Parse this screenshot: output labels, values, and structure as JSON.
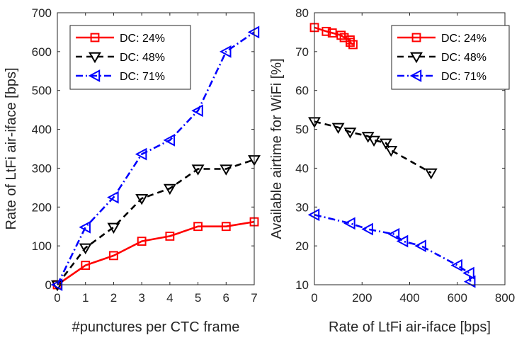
{
  "chart_data": [
    {
      "type": "line",
      "title": "",
      "xlabel": "#punctures per CTC frame",
      "ylabel": "Rate of LtFi air-iface [bps]",
      "xlim": [
        0,
        7
      ],
      "ylim": [
        0,
        700
      ],
      "xticks": [
        "0",
        "1",
        "2",
        "3",
        "4",
        "5",
        "6",
        "7"
      ],
      "yticks": [
        "0",
        "100",
        "200",
        "300",
        "400",
        "500",
        "600",
        "700"
      ],
      "xtick_values": [
        0,
        1,
        2,
        3,
        4,
        5,
        6,
        7
      ],
      "ytick_values": [
        0,
        100,
        200,
        300,
        400,
        500,
        600,
        700
      ],
      "grid": false,
      "legend_position": "top-left",
      "series": [
        {
          "name": "DC: 24%",
          "color": "#ff0000",
          "dash": "solid",
          "marker": "square",
          "x": [
            0,
            1,
            2,
            3,
            4,
            5,
            6,
            7
          ],
          "y": [
            0,
            50,
            75,
            112,
            125,
            150,
            150,
            162
          ]
        },
        {
          "name": "DC: 48%",
          "color": "#000000",
          "dash": "dashed",
          "marker": "triangle-down",
          "x": [
            0,
            1,
            2,
            3,
            4,
            5,
            6,
            7
          ],
          "y": [
            0,
            95,
            148,
            222,
            248,
            298,
            298,
            322
          ]
        },
        {
          "name": "DC: 71%",
          "color": "#0000ff",
          "dash": "dashdot",
          "marker": "triangle-left",
          "x": [
            0,
            1,
            2,
            3,
            4,
            5,
            6,
            7
          ],
          "y": [
            0,
            148,
            225,
            336,
            372,
            448,
            600,
            650
          ]
        }
      ]
    },
    {
      "type": "line",
      "title": "",
      "xlabel": "Rate of LtFi air-iface [bps]",
      "ylabel": "Available airtime for WiFi [%]",
      "xlim": [
        0,
        800
      ],
      "ylim": [
        10,
        80
      ],
      "xticks": [
        "0",
        "200",
        "400",
        "600",
        "800"
      ],
      "yticks": [
        "10",
        "20",
        "30",
        "40",
        "50",
        "60",
        "70",
        "80"
      ],
      "xtick_values": [
        0,
        200,
        400,
        600,
        800
      ],
      "ytick_values": [
        10,
        20,
        30,
        40,
        50,
        60,
        70,
        80
      ],
      "grid": false,
      "legend_position": "top-right",
      "series": [
        {
          "name": "DC: 24%",
          "color": "#ff0000",
          "dash": "solid",
          "marker": "square",
          "x": [
            0,
            50,
            75,
            112,
            125,
            150,
            150,
            162
          ],
          "y": [
            76.2,
            75.2,
            74.8,
            74.2,
            73.6,
            73.0,
            72.4,
            71.8
          ]
        },
        {
          "name": "DC: 48%",
          "color": "#000000",
          "dash": "dashed",
          "marker": "triangle-down",
          "x": [
            0,
            100,
            150,
            225,
            250,
            300,
            322,
            490
          ],
          "y": [
            52,
            50.5,
            49.3,
            48.2,
            47.2,
            46.5,
            44.6,
            38.8
          ]
        },
        {
          "name": "DC: 71%",
          "color": "#0000ff",
          "dash": "dashdot",
          "marker": "triangle-left",
          "x": [
            0,
            150,
            225,
            336,
            372,
            448,
            600,
            650,
            655
          ],
          "y": [
            28,
            25.8,
            24.3,
            23,
            21.2,
            20,
            15,
            13,
            10.8
          ]
        }
      ]
    }
  ]
}
